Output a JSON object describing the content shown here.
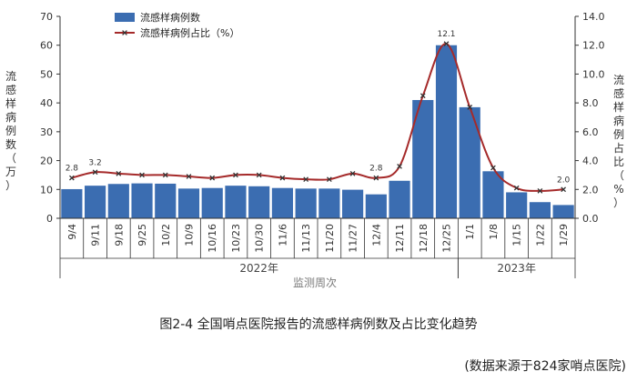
{
  "colors": {
    "bar": "#3b6db1",
    "line": "#a52a2a",
    "marker": "#333333",
    "axis": "#333333",
    "axis_label": "#333333",
    "year_label": "#444444",
    "xlabel_color": "#7a7a7a"
  },
  "chart_data": {
    "type": "bar",
    "categories": [
      "9/4",
      "9/11",
      "9/18",
      "9/25",
      "10/2",
      "10/9",
      "10/16",
      "10/23",
      "10/30",
      "11/6",
      "11/13",
      "11/20",
      "11/27",
      "12/4",
      "12/11",
      "12/18",
      "12/25",
      "1/1",
      "1/8",
      "1/15",
      "1/22",
      "1/29"
    ],
    "series": [
      {
        "name": "流感样病例数",
        "type": "bar",
        "axis": "left",
        "values": [
          10.1,
          11.3,
          11.9,
          12.1,
          12.0,
          10.3,
          10.5,
          11.3,
          11.1,
          10.5,
          10.3,
          10.3,
          9.9,
          8.3,
          13.0,
          41.0,
          60.0,
          38.5,
          16.3,
          9.0,
          5.6,
          4.6
        ]
      },
      {
        "name": "流感样病例占比（%）",
        "type": "line",
        "axis": "right",
        "values": [
          2.8,
          3.2,
          3.1,
          3.0,
          3.0,
          2.9,
          2.8,
          3.0,
          3.0,
          2.8,
          2.7,
          2.7,
          3.1,
          2.8,
          3.6,
          8.5,
          12.1,
          7.7,
          3.5,
          2.1,
          1.9,
          2.0
        ]
      }
    ],
    "data_labels": [
      {
        "index": 0,
        "text": "2.8"
      },
      {
        "index": 1,
        "text": "3.2"
      },
      {
        "index": 13,
        "text": "2.8"
      },
      {
        "index": 16,
        "text": "12.1"
      },
      {
        "index": 21,
        "text": "2.0"
      }
    ],
    "ylabel": "流感样病例数（万）",
    "y2label": "流感样病例占比（%）",
    "ylim": [
      0,
      70
    ],
    "yticks": [
      "0",
      "10",
      "20",
      "30",
      "40",
      "50",
      "60",
      "70"
    ],
    "y2lim": [
      0,
      14
    ],
    "y2ticks": [
      "0.0",
      "2.0",
      "4.0",
      "6.0",
      "8.0",
      "10.0",
      "12.0",
      "14.0"
    ],
    "xlabel": "监测周次",
    "year_groups": [
      {
        "label": "2022年",
        "start": 0,
        "end": 16
      },
      {
        "label": "2023年",
        "start": 17,
        "end": 21
      }
    ],
    "legend_position": "top-left",
    "grid": false
  },
  "caption": "图2-4   全国哨点医院报告的流感样病例数及占比变化趋势",
  "source_note": "(数据来源于824家哨点医院)"
}
